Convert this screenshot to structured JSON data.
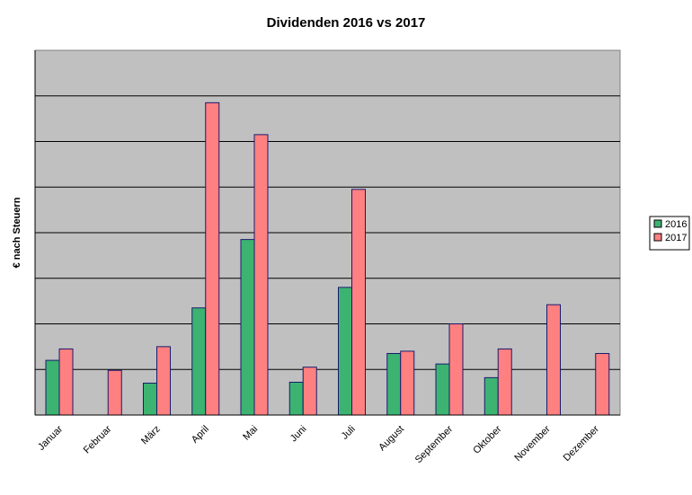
{
  "chart_data": {
    "type": "bar",
    "title": "Dividenden 2016 vs 2017",
    "xlabel": "",
    "ylabel": "€ nach Steuern",
    "ylim": [
      0,
      8
    ],
    "grid": true,
    "legend": "right",
    "categories": [
      "Januar",
      "Februar",
      "März",
      "April",
      "Mai",
      "Juni",
      "Juli",
      "August",
      "September",
      "Oktober",
      "November",
      "Dezember"
    ],
    "series": [
      {
        "name": "2016",
        "color": "#3cb371",
        "values": [
          1.2,
          0,
          0.7,
          2.35,
          3.85,
          0.72,
          2.8,
          1.35,
          1.12,
          0.82,
          0,
          0
        ]
      },
      {
        "name": "2017",
        "color": "#ff8080",
        "values": [
          1.45,
          0.98,
          1.5,
          6.85,
          6.15,
          1.05,
          4.95,
          1.4,
          2.0,
          1.45,
          2.42,
          1.35
        ]
      }
    ]
  }
}
